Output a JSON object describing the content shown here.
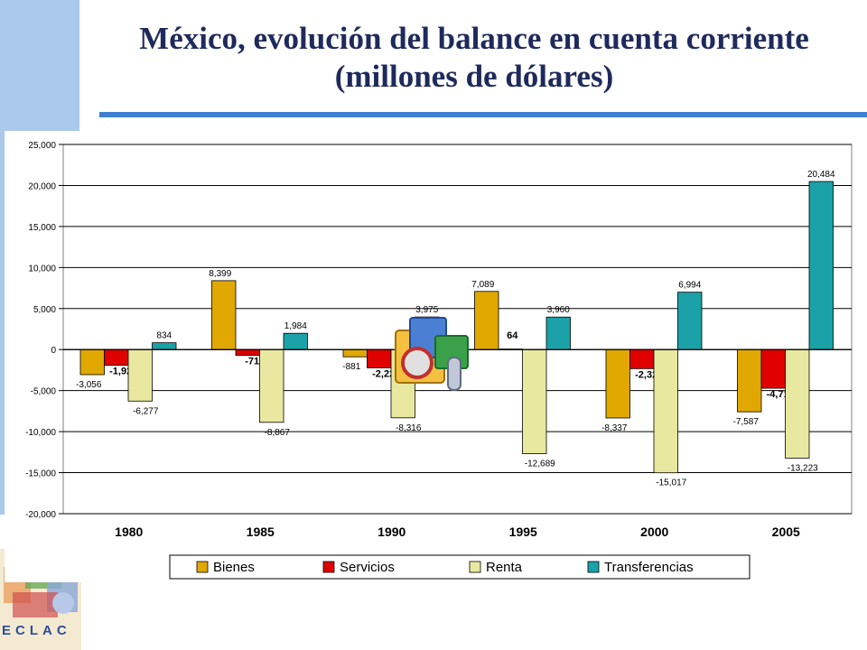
{
  "title": "México, evolución del balance en cuenta corriente (millones de dólares)",
  "logo_text": "ECLAC",
  "colors": {
    "Bienes": "#e0a800",
    "Servicios": "#e00000",
    "Renta": "#e8e8a0",
    "Transferencias": "#1aa2a8",
    "plot_bg": "#ffffff",
    "grid": "#000000",
    "title": "#1f2a5c",
    "accent_band": "#a9c8ec",
    "rule": "#3f7fd0"
  },
  "chart_data": {
    "type": "bar",
    "title": "",
    "xlabel": "",
    "ylabel": "",
    "categories": [
      "1980",
      "1985",
      "1990",
      "1995",
      "2000",
      "2005"
    ],
    "ylim": [
      -20000,
      25000
    ],
    "yticks": [
      -20000,
      -15000,
      -10000,
      -5000,
      0,
      5000,
      10000,
      15000,
      20000,
      25000
    ],
    "ytick_labels": [
      "-20,000",
      "-15,000",
      "-10,000",
      "-5,000",
      "0",
      "5,000",
      "10,000",
      "15,000",
      "20,000",
      "25,000"
    ],
    "grid": true,
    "legend": "bottom",
    "series": [
      {
        "name": "Bienes",
        "values": [
          -3056,
          8399,
          -881,
          7089,
          -8337,
          -7587
        ],
        "labels": [
          "-3,056",
          "8,399",
          "-881",
          "7,089",
          "-8,337",
          "-7,587"
        ]
      },
      {
        "name": "Servicios",
        "values": [
          -1923,
          -716,
          -2229,
          64,
          -2323,
          -4713
        ],
        "labels": [
          "-1,923",
          "-716",
          "-2,229",
          "64",
          "-2,323",
          "-4,713"
        ]
      },
      {
        "name": "Renta",
        "values": [
          -6277,
          -8867,
          -8316,
          -12689,
          -15017,
          -13223
        ],
        "labels": [
          "-6,277",
          "-8,867",
          "-8,316",
          "-12,689",
          "-15,017",
          "-13,223"
        ]
      },
      {
        "name": "Transferencias",
        "values": [
          834,
          1984,
          3975,
          3960,
          6994,
          20484
        ],
        "labels": [
          "834",
          "1,984",
          "3,975",
          "3,960",
          "6,994",
          "20,484"
        ]
      }
    ]
  }
}
